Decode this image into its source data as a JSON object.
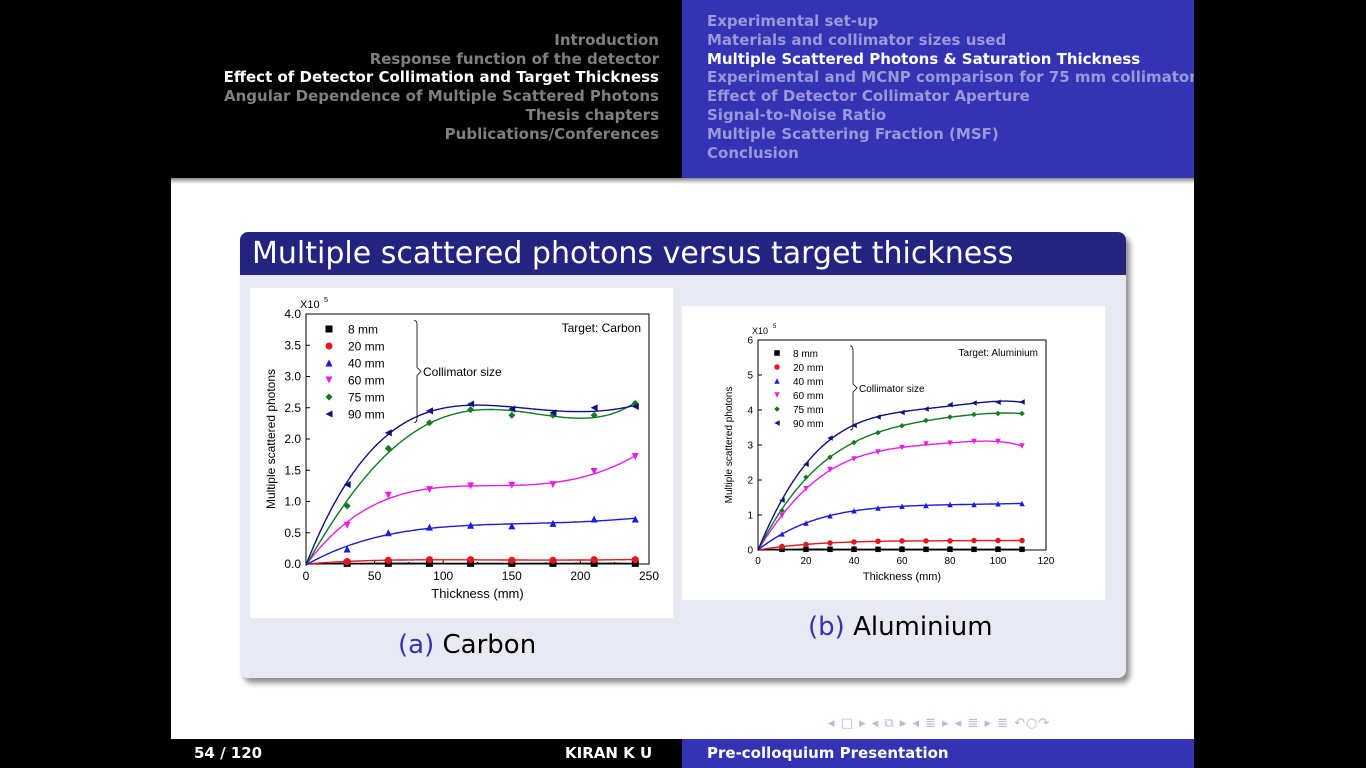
{
  "nav": {
    "sections": [
      {
        "label": "Introduction",
        "active": false
      },
      {
        "label": "Response function of the detector",
        "active": false
      },
      {
        "label": "Effect of Detector Collimation and Target Thickness",
        "active": true
      },
      {
        "label": "Angular Dependence of Multiple Scattered Photons",
        "active": false
      },
      {
        "label": "Thesis chapters",
        "active": false
      },
      {
        "label": "Publications/Conferences",
        "active": false
      }
    ],
    "subsections": [
      {
        "label": "Experimental set-up",
        "active": false
      },
      {
        "label": "Materials and collimator sizes used",
        "active": false
      },
      {
        "label": "Multiple Scattered Photons & Saturation Thickness",
        "active": true
      },
      {
        "label": "Experimental and MCNP comparison for 75 mm collimator",
        "active": false
      },
      {
        "label": "Effect of Detector Collimator Aperture",
        "active": false
      },
      {
        "label": "Signal-to-Noise Ratio",
        "active": false
      },
      {
        "label": "Multiple Scattering Fraction (MSF)",
        "active": false
      },
      {
        "label": "Conclusion",
        "active": false
      }
    ]
  },
  "block": {
    "title": "Multiple scattered photons versus target thickness"
  },
  "captions": {
    "a": {
      "label": "(a)",
      "text": "Carbon"
    },
    "b": {
      "label": "(b)",
      "text": "Aluminium"
    }
  },
  "footer": {
    "page": "54 / 120",
    "author": "KIRAN K U",
    "talk": "Pre-colloquium Presentation"
  },
  "nav_symbols": "◂ □ ▸ ◂ ⧉ ▸ ◂ ≣ ▸ ◂ ≣ ▸ ≣ ↶○↷",
  "chart_data": [
    {
      "type": "scatter",
      "annotation": "Target: Carbon",
      "xlabel": "Thickness (mm)",
      "ylabel": "Multiple scattered photons",
      "ylabel_mult": "X10",
      "ylabel_exp": "5",
      "xlim": [
        0,
        250
      ],
      "ylim": [
        0,
        4
      ],
      "xticks": [
        "0",
        "50",
        "100",
        "150",
        "200",
        "250"
      ],
      "yticks": [
        "0.0",
        "0.5",
        "1.0",
        "1.5",
        "2.0",
        "2.5",
        "3.0",
        "3.5",
        "4.0"
      ],
      "legend_group_label": "Collimator size",
      "series": [
        {
          "name": "8 mm",
          "color": "#000000",
          "marker": "square",
          "x": [
            30,
            60,
            90,
            120,
            150,
            180,
            210,
            240
          ],
          "y": [
            0.01,
            0.01,
            0.01,
            0.01,
            0.01,
            0.01,
            0.01,
            0.01
          ]
        },
        {
          "name": "20 mm",
          "color": "#e8141e",
          "marker": "circle",
          "x": [
            30,
            60,
            90,
            120,
            150,
            180,
            210,
            240
          ],
          "y": [
            0.04,
            0.06,
            0.07,
            0.07,
            0.06,
            0.06,
            0.07,
            0.07
          ]
        },
        {
          "name": "40 mm",
          "color": "#1a1ae0",
          "marker": "triangle-up",
          "x": [
            30,
            60,
            90,
            120,
            150,
            180,
            210,
            240
          ],
          "y": [
            0.24,
            0.5,
            0.59,
            0.62,
            0.61,
            0.65,
            0.72,
            0.72
          ]
        },
        {
          "name": "60 mm",
          "color": "#e81ee8",
          "marker": "triangle-down",
          "x": [
            30,
            60,
            90,
            120,
            150,
            180,
            210,
            240
          ],
          "y": [
            0.62,
            1.1,
            1.19,
            1.25,
            1.26,
            1.27,
            1.48,
            1.72
          ]
        },
        {
          "name": "75 mm",
          "color": "#0f7a20",
          "marker": "diamond",
          "x": [
            30,
            60,
            90,
            120,
            150,
            180,
            210,
            240
          ],
          "y": [
            0.93,
            1.85,
            2.26,
            2.47,
            2.38,
            2.38,
            2.38,
            2.57
          ]
        },
        {
          "name": "90 mm",
          "color": "#101080",
          "marker": "triangle-left",
          "x": [
            30,
            60,
            90,
            120,
            150,
            180,
            210,
            240
          ],
          "y": [
            1.27,
            2.1,
            2.45,
            2.56,
            2.48,
            2.42,
            2.5,
            2.52
          ]
        }
      ]
    },
    {
      "type": "scatter",
      "annotation": "Target: Aluminium",
      "xlabel": "Thickness (mm)",
      "ylabel": "Multiple scattered photons",
      "ylabel_mult": "X10",
      "ylabel_exp": "5",
      "xlim": [
        0,
        120
      ],
      "ylim": [
        0,
        6
      ],
      "xticks": [
        "0",
        "20",
        "40",
        "60",
        "80",
        "100",
        "120"
      ],
      "yticks": [
        "0",
        "1",
        "2",
        "3",
        "4",
        "5",
        "6"
      ],
      "legend_group_label": "Collimator size",
      "series": [
        {
          "name": "8 mm",
          "color": "#000000",
          "marker": "square",
          "x": [
            10,
            20,
            30,
            40,
            50,
            60,
            70,
            80,
            90,
            100,
            110
          ],
          "y": [
            0.02,
            0.02,
            0.02,
            0.02,
            0.02,
            0.02,
            0.02,
            0.02,
            0.02,
            0.02,
            0.02
          ]
        },
        {
          "name": "20 mm",
          "color": "#e8141e",
          "marker": "circle",
          "x": [
            10,
            20,
            30,
            40,
            50,
            60,
            70,
            80,
            90,
            100,
            110
          ],
          "y": [
            0.1,
            0.16,
            0.2,
            0.23,
            0.25,
            0.26,
            0.26,
            0.26,
            0.27,
            0.27,
            0.27
          ]
        },
        {
          "name": "40 mm",
          "color": "#1a1ae0",
          "marker": "triangle-up",
          "x": [
            10,
            20,
            30,
            40,
            50,
            60,
            70,
            80,
            90,
            100,
            110
          ],
          "y": [
            0.46,
            0.77,
            0.98,
            1.12,
            1.2,
            1.25,
            1.27,
            1.3,
            1.3,
            1.32,
            1.33
          ]
        },
        {
          "name": "60 mm",
          "color": "#e81ee8",
          "marker": "triangle-down",
          "x": [
            10,
            20,
            30,
            40,
            50,
            60,
            70,
            80,
            90,
            100,
            110
          ],
          "y": [
            0.98,
            1.75,
            2.3,
            2.6,
            2.8,
            2.93,
            3.03,
            3.05,
            3.1,
            3.1,
            2.97
          ]
        },
        {
          "name": "75 mm",
          "color": "#0f7a20",
          "marker": "diamond",
          "x": [
            10,
            20,
            30,
            40,
            50,
            60,
            70,
            80,
            90,
            100,
            110
          ],
          "y": [
            1.13,
            2.08,
            2.65,
            3.07,
            3.35,
            3.55,
            3.7,
            3.8,
            3.87,
            3.9,
            3.9
          ]
        },
        {
          "name": "90 mm",
          "color": "#101080",
          "marker": "triangle-left",
          "x": [
            10,
            20,
            30,
            40,
            50,
            60,
            70,
            80,
            90,
            100,
            110
          ],
          "y": [
            1.42,
            2.45,
            3.2,
            3.56,
            3.8,
            3.93,
            4.03,
            4.15,
            4.2,
            4.22,
            4.23
          ]
        }
      ]
    }
  ]
}
